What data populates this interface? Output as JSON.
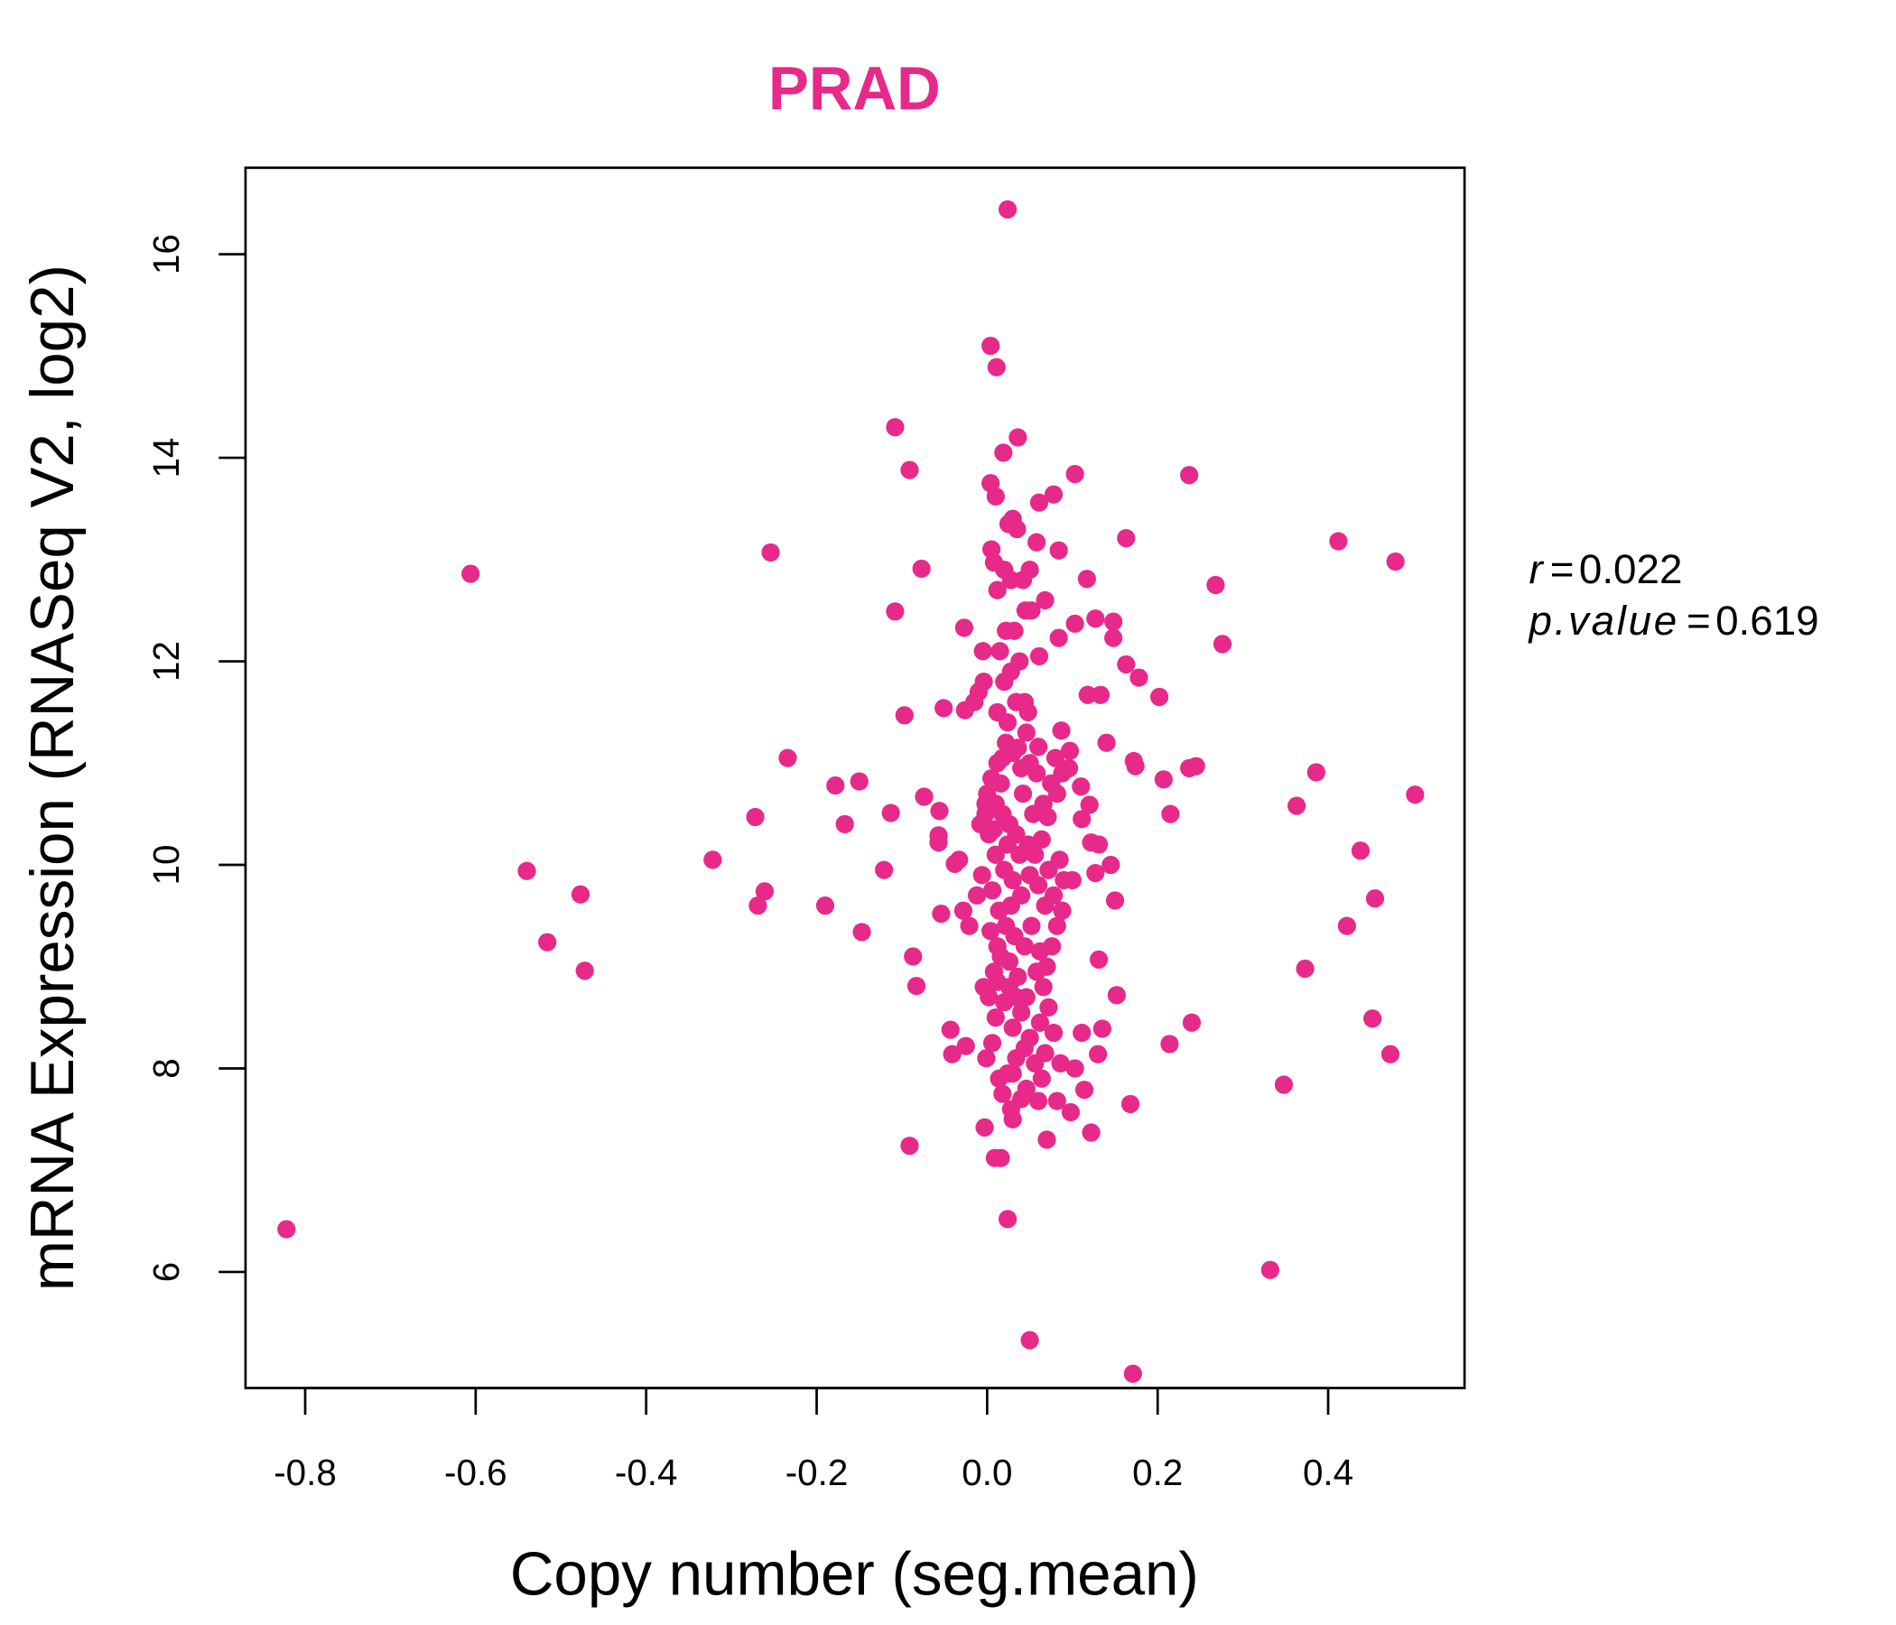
{
  "chart_data": {
    "type": "scatter",
    "title": "PRAD",
    "xlabel": "Copy number (seg.mean)",
    "ylabel": "mRNA Expression (RNASeq V2, log2)",
    "xlim": [
      -0.87,
      0.56
    ],
    "ylim": [
      4.86,
      16.85
    ],
    "xticks": [
      -0.8,
      -0.6,
      -0.4,
      -0.2,
      0.0,
      0.2,
      0.4
    ],
    "xtick_labels": [
      "-0.8",
      "-0.6",
      "-0.4",
      "-0.2",
      "0.0",
      "0.2",
      "0.4"
    ],
    "yticks": [
      6,
      8,
      10,
      12,
      14,
      16
    ],
    "ytick_labels": [
      "6",
      "8",
      "10",
      "12",
      "14",
      "16"
    ],
    "grid": false,
    "point_color": "#E7298A",
    "title_color": "#E7298A",
    "stats": {
      "r_label": "r",
      "r_value": "0.022",
      "p_label": "p.value",
      "p_value": "0.619",
      "eq": "="
    },
    "points": [
      [
        -0.822,
        6.42
      ],
      [
        -0.606,
        12.86
      ],
      [
        -0.54,
        9.94
      ],
      [
        -0.516,
        9.24
      ],
      [
        -0.477,
        9.71
      ],
      [
        -0.472,
        8.96
      ],
      [
        -0.322,
        10.05
      ],
      [
        -0.254,
        13.07
      ],
      [
        -0.272,
        10.47
      ],
      [
        -0.261,
        9.74
      ],
      [
        -0.269,
        9.6
      ],
      [
        -0.234,
        11.05
      ],
      [
        -0.19,
        9.6
      ],
      [
        -0.178,
        10.78
      ],
      [
        -0.167,
        10.4
      ],
      [
        -0.15,
        10.82
      ],
      [
        -0.147,
        9.34
      ],
      [
        -0.121,
        9.95
      ],
      [
        -0.113,
        10.51
      ],
      [
        -0.108,
        14.3
      ],
      [
        -0.108,
        12.49
      ],
      [
        -0.097,
        11.47
      ],
      [
        -0.091,
        13.88
      ],
      [
        -0.091,
        7.24
      ],
      [
        -0.087,
        9.1
      ],
      [
        -0.083,
        8.81
      ],
      [
        -0.077,
        12.91
      ],
      [
        -0.074,
        10.67
      ],
      [
        -0.056,
        10.53
      ],
      [
        -0.057,
        10.29
      ],
      [
        -0.057,
        10.22
      ],
      [
        -0.054,
        9.52
      ],
      [
        -0.051,
        11.54
      ],
      [
        -0.043,
        8.38
      ],
      [
        -0.041,
        8.14
      ],
      [
        -0.038,
        10.01
      ],
      [
        -0.033,
        10.05
      ],
      [
        -0.027,
        12.33
      ],
      [
        -0.026,
        11.52
      ],
      [
        -0.025,
        8.22
      ],
      [
        -0.028,
        9.55
      ],
      [
        -0.021,
        9.4
      ],
      [
        -0.015,
        11.6
      ],
      [
        -0.012,
        9.7
      ],
      [
        -0.01,
        11.7
      ],
      [
        -0.008,
        10.4
      ],
      [
        -0.006,
        9.9
      ],
      [
        -0.005,
        12.1
      ],
      [
        -0.004,
        8.8
      ],
      [
        -0.003,
        7.42
      ],
      [
        -0.004,
        11.8
      ],
      [
        -0.002,
        10.6
      ],
      [
        -0.001,
        8.1
      ],
      [
        0.004,
        15.1
      ],
      [
        0.011,
        14.89
      ],
      [
        0.024,
        16.44
      ],
      [
        0.036,
        14.2
      ],
      [
        0.019,
        14.05
      ],
      [
        0.004,
        13.75
      ],
      [
        0.01,
        13.62
      ],
      [
        0.061,
        13.56
      ],
      [
        0.078,
        13.64
      ],
      [
        0.103,
        13.84
      ],
      [
        0.237,
        13.83
      ],
      [
        0.163,
        13.21
      ],
      [
        0.412,
        13.18
      ],
      [
        0.479,
        12.98
      ],
      [
        0.268,
        12.75
      ],
      [
        0.276,
        12.17
      ],
      [
        0.117,
        12.81
      ],
      [
        0.084,
        13.09
      ],
      [
        0.058,
        13.17
      ],
      [
        0.127,
        12.42
      ],
      [
        0.148,
        12.39
      ],
      [
        0.148,
        12.23
      ],
      [
        0.103,
        12.37
      ],
      [
        0.084,
        12.23
      ],
      [
        0.061,
        12.05
      ],
      [
        0.163,
        11.97
      ],
      [
        0.178,
        11.84
      ],
      [
        0.202,
        11.65
      ],
      [
        0.118,
        11.67
      ],
      [
        0.133,
        11.67
      ],
      [
        0.14,
        11.2
      ],
      [
        0.172,
        11.02
      ],
      [
        0.174,
        10.97
      ],
      [
        0.207,
        10.84
      ],
      [
        0.237,
        10.95
      ],
      [
        0.245,
        10.97
      ],
      [
        0.215,
        10.5
      ],
      [
        0.386,
        10.91
      ],
      [
        0.363,
        10.58
      ],
      [
        0.502,
        10.69
      ],
      [
        0.438,
        10.14
      ],
      [
        0.455,
        9.67
      ],
      [
        0.422,
        9.4
      ],
      [
        0.373,
        8.98
      ],
      [
        0.452,
        8.49
      ],
      [
        0.473,
        8.14
      ],
      [
        0.348,
        7.84
      ],
      [
        0.24,
        8.45
      ],
      [
        0.214,
        8.24
      ],
      [
        0.332,
        6.02
      ],
      [
        0.171,
        5.0
      ],
      [
        0.05,
        5.33
      ],
      [
        0.024,
        6.52
      ],
      [
        0.168,
        7.65
      ],
      [
        0.152,
        8.72
      ],
      [
        0.131,
        9.07
      ],
      [
        0.15,
        9.65
      ],
      [
        0.145,
        10.0
      ],
      [
        0.131,
        10.2
      ],
      [
        0.122,
        10.22
      ],
      [
        0.127,
        9.92
      ],
      [
        0.111,
        10.45
      ],
      [
        0.12,
        10.59
      ],
      [
        0.11,
        10.77
      ],
      [
        0.097,
        11.12
      ],
      [
        0.087,
        11.32
      ],
      [
        0.071,
        10.47
      ],
      [
        0.135,
        8.39
      ],
      [
        0.111,
        8.35
      ],
      [
        0.13,
        8.14
      ],
      [
        0.114,
        7.79
      ],
      [
        0.103,
        8.0
      ],
      [
        0.122,
        7.37
      ],
      [
        0.098,
        7.57
      ],
      [
        0.07,
        7.3
      ],
      [
        0.082,
        7.68
      ],
      [
        0.06,
        7.68
      ],
      [
        0.009,
        7.12
      ],
      [
        0.016,
        7.12
      ],
      [
        0.03,
        7.5
      ],
      [
        0.03,
        7.95
      ],
      [
        0.04,
        7.7
      ],
      [
        0.005,
        13.1
      ],
      [
        0.008,
        12.97
      ],
      [
        0.012,
        12.7
      ],
      [
        0.02,
        12.9
      ],
      [
        0.028,
        12.8
      ],
      [
        0.035,
        13.3
      ],
      [
        0.03,
        13.4
      ],
      [
        0.025,
        13.35
      ],
      [
        0.042,
        12.8
      ],
      [
        0.05,
        12.9
      ],
      [
        0.045,
        12.5
      ],
      [
        0.052,
        12.5
      ],
      [
        0.068,
        12.6
      ],
      [
        0.032,
        12.3
      ],
      [
        0.022,
        12.3
      ],
      [
        0.015,
        12.1
      ],
      [
        0.038,
        12.0
      ],
      [
        0.028,
        11.9
      ],
      [
        0.02,
        11.8
      ],
      [
        0.034,
        11.6
      ],
      [
        0.044,
        11.6
      ],
      [
        0.048,
        11.5
      ],
      [
        0.012,
        11.5
      ],
      [
        0.024,
        11.4
      ],
      [
        0.06,
        11.16
      ],
      [
        0.08,
        11.05
      ],
      [
        0.088,
        10.9
      ],
      [
        0.075,
        10.8
      ],
      [
        0.082,
        10.7
      ],
      [
        0.066,
        10.6
      ],
      [
        0.058,
        10.9
      ],
      [
        0.05,
        11.0
      ],
      [
        0.04,
        10.95
      ],
      [
        0.03,
        11.1
      ],
      [
        0.022,
        11.2
      ],
      [
        0.012,
        11.0
      ],
      [
        0.005,
        10.85
      ],
      [
        0.0,
        10.7
      ],
      [
        0.01,
        10.6
      ],
      [
        0.018,
        10.5
      ],
      [
        0.026,
        10.4
      ],
      [
        0.034,
        10.3
      ],
      [
        0.042,
        10.7
      ],
      [
        0.048,
        10.2
      ],
      [
        0.056,
        10.1
      ],
      [
        0.064,
        10.25
      ],
      [
        0.072,
        9.95
      ],
      [
        0.085,
        10.05
      ],
      [
        0.09,
        9.85
      ],
      [
        0.078,
        9.7
      ],
      [
        0.068,
        9.6
      ],
      [
        0.06,
        9.8
      ],
      [
        0.05,
        9.9
      ],
      [
        0.04,
        9.7
      ],
      [
        0.03,
        9.85
      ],
      [
        0.02,
        9.95
      ],
      [
        0.01,
        10.1
      ],
      [
        0.002,
        10.3
      ],
      [
        -0.002,
        10.5
      ],
      [
        0.006,
        9.75
      ],
      [
        0.014,
        9.55
      ],
      [
        0.022,
        9.4
      ],
      [
        0.032,
        9.3
      ],
      [
        0.044,
        9.2
      ],
      [
        0.052,
        9.4
      ],
      [
        0.062,
        9.15
      ],
      [
        0.07,
        9.0
      ],
      [
        0.066,
        8.8
      ],
      [
        0.058,
        8.95
      ],
      [
        0.046,
        8.7
      ],
      [
        0.036,
        8.9
      ],
      [
        0.026,
        9.05
      ],
      [
        0.016,
        9.1
      ],
      [
        0.008,
        8.95
      ],
      [
        0.002,
        8.7
      ],
      [
        0.01,
        8.5
      ],
      [
        0.02,
        8.65
      ],
      [
        0.03,
        8.4
      ],
      [
        0.04,
        8.55
      ],
      [
        0.05,
        8.3
      ],
      [
        0.062,
        8.45
      ],
      [
        0.072,
        8.6
      ],
      [
        0.078,
        8.35
      ],
      [
        0.068,
        8.15
      ],
      [
        0.056,
        8.05
      ],
      [
        0.044,
        8.2
      ],
      [
        0.034,
        8.1
      ],
      [
        0.024,
        7.95
      ],
      [
        0.014,
        7.9
      ],
      [
        0.006,
        8.25
      ],
      [
        0.018,
        7.75
      ],
      [
        0.028,
        7.6
      ],
      [
        0.046,
        7.8
      ],
      [
        0.064,
        7.9
      ],
      [
        0.086,
        8.05
      ],
      [
        0.1,
        9.85
      ],
      [
        0.096,
        10.95
      ],
      [
        0.082,
        9.4
      ],
      [
        0.076,
        9.2
      ],
      [
        0.088,
        9.55
      ],
      [
        0.016,
        10.8
      ],
      [
        0.024,
        10.2
      ],
      [
        0.004,
        9.35
      ],
      [
        0.012,
        9.2
      ],
      [
        0.028,
        9.6
      ],
      [
        0.038,
        10.1
      ],
      [
        0.054,
        10.5
      ],
      [
        0.046,
        11.3
      ],
      [
        0.036,
        11.15
      ],
      [
        0.018,
        11.05
      ],
      [
        0.008,
        10.35
      ],
      [
        0.026,
        8.8
      ],
      [
        0.034,
        8.7
      ],
      [
        0.012,
        8.85
      ]
    ]
  }
}
